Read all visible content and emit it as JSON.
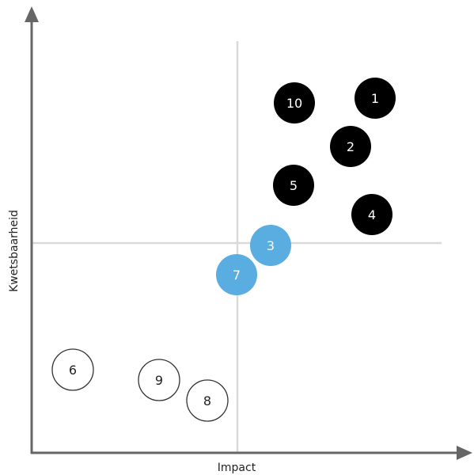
{
  "axes": {
    "x_label": "Impact",
    "y_label": "Kwetsbaarheid"
  },
  "colors": {
    "axis": "#666666",
    "divider": "#d9d9d9",
    "high": "#000000",
    "medium": "#5aade0",
    "low_fill": "#ffffff",
    "low_stroke": "#333333"
  },
  "items": [
    {
      "label": "1",
      "group": "high"
    },
    {
      "label": "10",
      "group": "high"
    },
    {
      "label": "2",
      "group": "high"
    },
    {
      "label": "5",
      "group": "high"
    },
    {
      "label": "4",
      "group": "high"
    },
    {
      "label": "3",
      "group": "medium"
    },
    {
      "label": "7",
      "group": "medium"
    },
    {
      "label": "6",
      "group": "low"
    },
    {
      "label": "9",
      "group": "low"
    },
    {
      "label": "8",
      "group": "low"
    }
  ]
}
